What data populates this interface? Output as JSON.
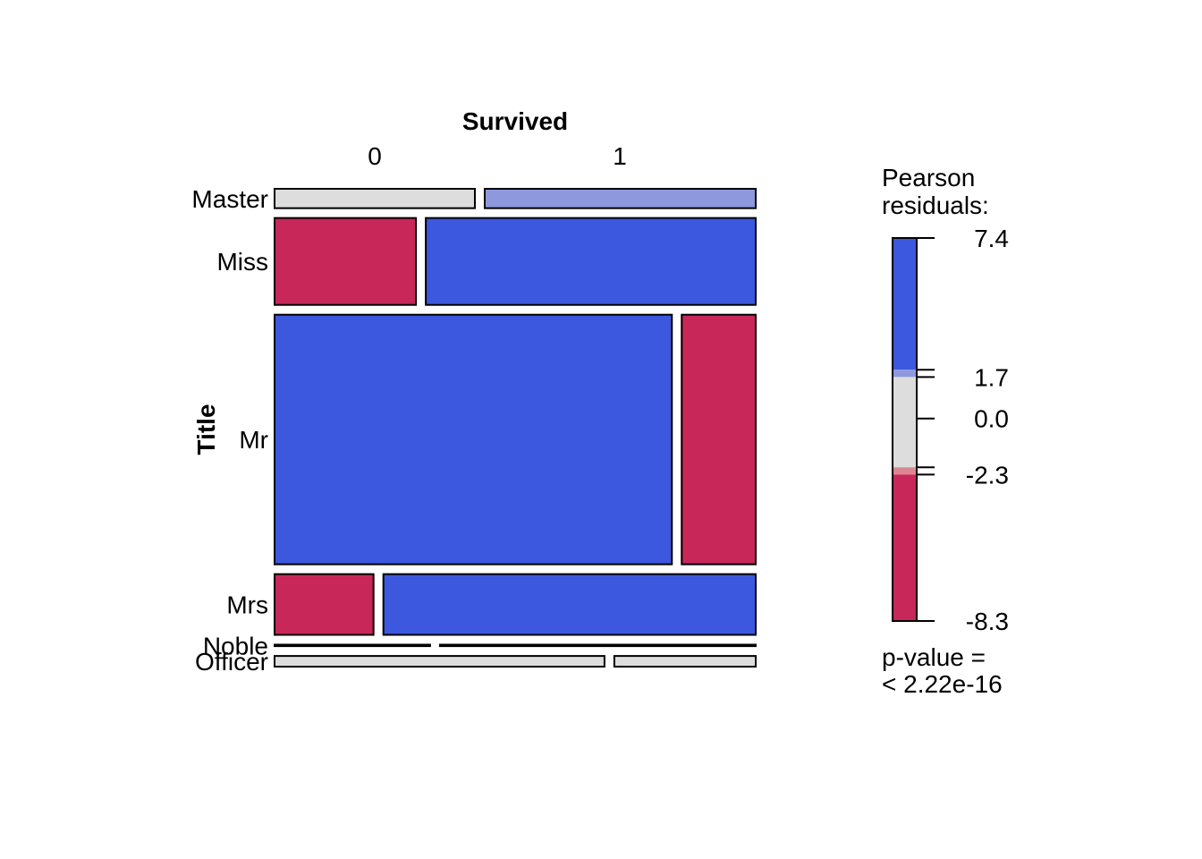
{
  "chart_data": {
    "type": "mosaic",
    "title": "",
    "col_variable": "Survived",
    "row_variable": "Title",
    "col_levels": [
      "0",
      "1"
    ],
    "row_levels": [
      "Master",
      "Miss",
      "Mr",
      "Mrs",
      "Noble",
      "Officer"
    ],
    "row_proportions": [
      0.0449,
      0.2014,
      0.5787,
      0.1407,
      0.0034,
      0.0247
    ],
    "survived_1_proportion_within_row": [
      0.575,
      0.7,
      0.157,
      0.79,
      0.67,
      0.3
    ],
    "residual_colors": {
      "strong_positive": "#3C58DE",
      "weak_positive": "#8E98DD",
      "neutral": "#DDDDDD",
      "weak_negative": "#DE8594",
      "strong_negative": "#C8275A"
    },
    "cell_shading": [
      [
        "neutral",
        "weak_positive"
      ],
      [
        "strong_negative",
        "strong_positive"
      ],
      [
        "strong_positive",
        "strong_negative"
      ],
      [
        "strong_negative",
        "strong_positive"
      ],
      [
        "neutral",
        "neutral"
      ],
      [
        "neutral",
        "neutral"
      ]
    ],
    "legend": {
      "title_line1": "Pearson",
      "title_line2": "residuals:",
      "max": 7.4,
      "min": -8.3,
      "tick_labels": [
        "7.4",
        "1.7",
        "0.0",
        "-2.3",
        "-8.3"
      ],
      "tick_values": [
        7.4,
        1.7,
        0.0,
        -2.3,
        -8.3
      ],
      "band_edges": [
        7.4,
        2.0,
        1.7,
        -2.0,
        -2.3,
        -8.3
      ],
      "pvalue_line1": "p-value =",
      "pvalue_line2": "< 2.22e-16"
    }
  }
}
